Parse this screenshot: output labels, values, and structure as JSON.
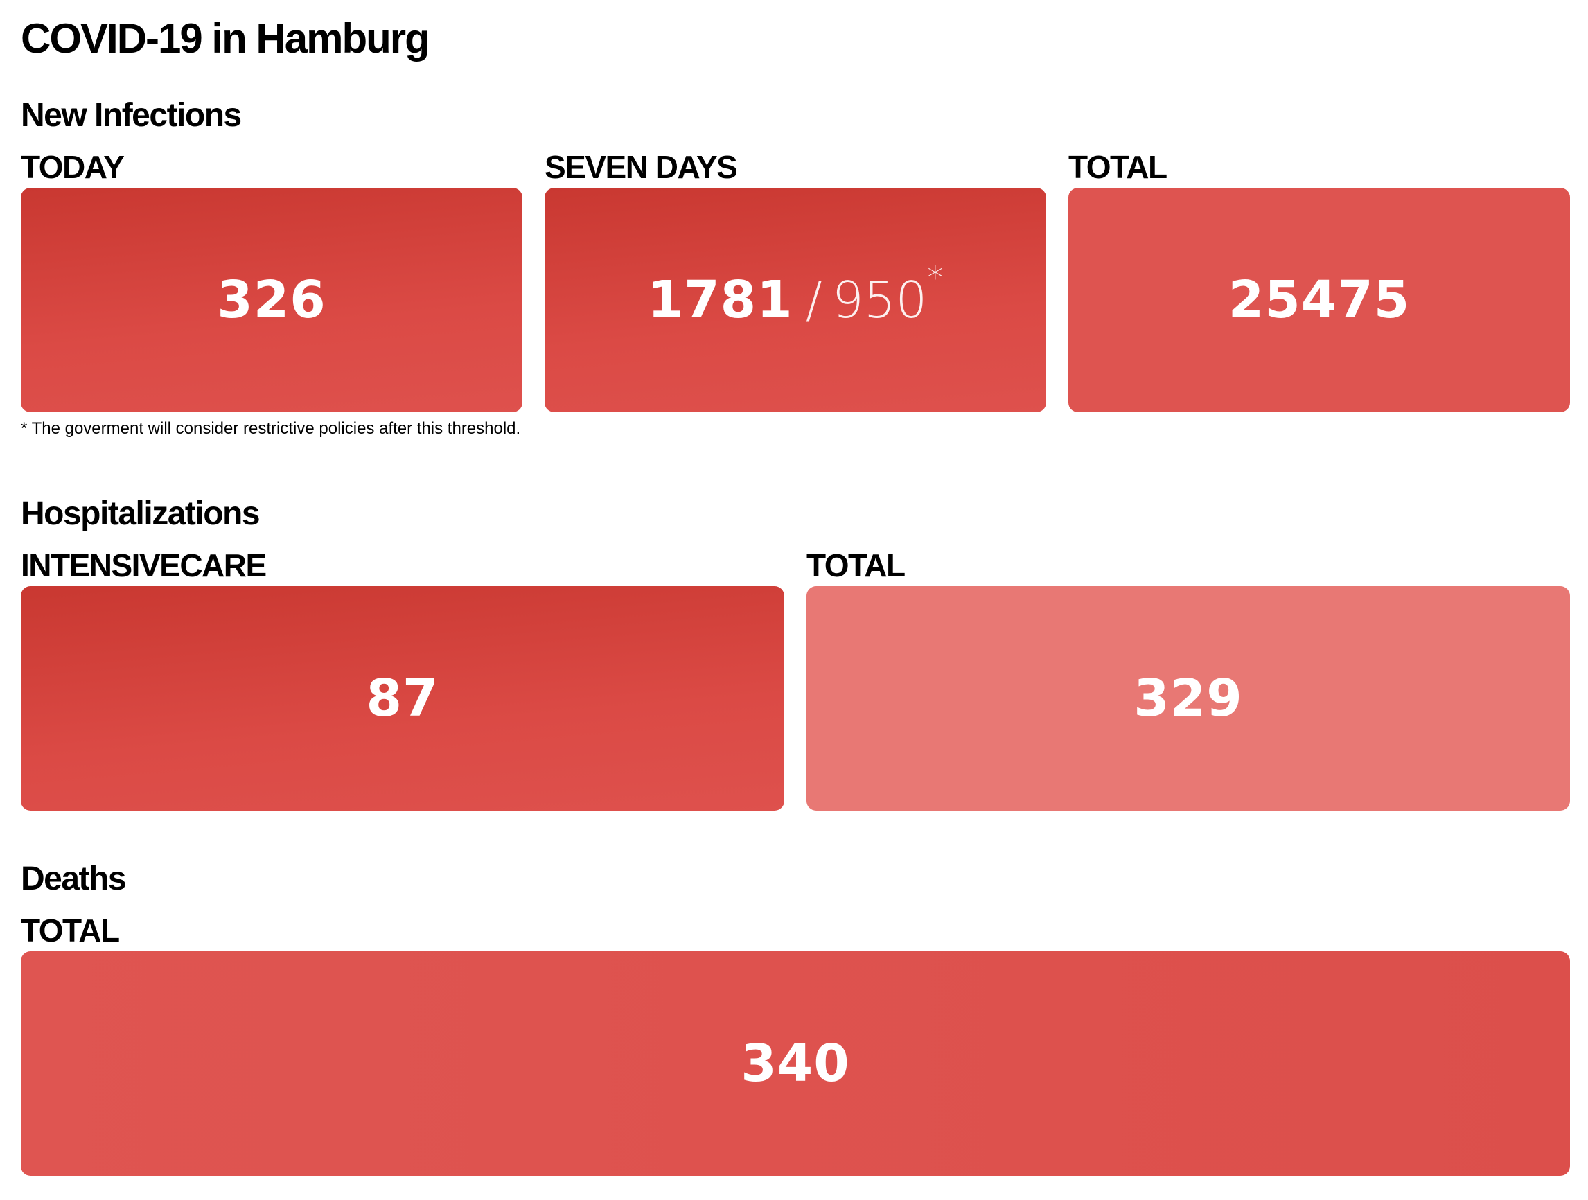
{
  "page": {
    "title": "COVID-19 in Hamburg"
  },
  "new_infections": {
    "heading": "New Infections",
    "today": {
      "label": "TODAY",
      "value": "326"
    },
    "seven_days": {
      "label": "SEVEN DAYS",
      "value": "1781",
      "separator": "/",
      "threshold": "950",
      "threshold_marker": "*"
    },
    "total": {
      "label": "TOTAL",
      "value": "25475"
    },
    "footnote": "* The goverment will consider restrictive policies after this threshold."
  },
  "hospitalizations": {
    "heading": "Hospitalizations",
    "intensive_care": {
      "label": "INTENSIVECARE",
      "value": "87"
    },
    "total": {
      "label": "TOTAL",
      "value": "329"
    }
  },
  "deaths": {
    "heading": "Deaths",
    "total": {
      "label": "TOTAL",
      "value": "340"
    }
  },
  "colors": {
    "card_dark": "#c93831",
    "card_mid": "#de5450",
    "card_light": "#e87874",
    "text_on_card": "#ffffff"
  }
}
